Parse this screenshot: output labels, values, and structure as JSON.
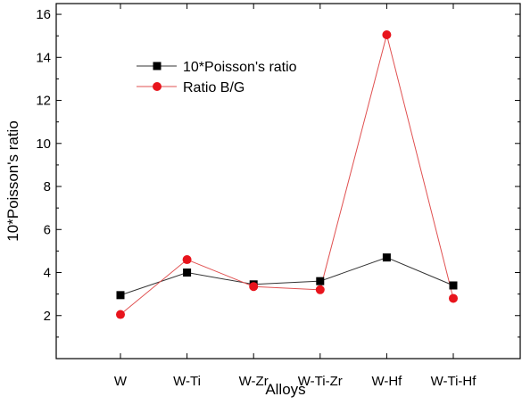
{
  "chart_data": {
    "type": "line",
    "title": "",
    "xlabel": "Alloys",
    "ylabel": "10*Poisson's ratio",
    "categories": [
      "W",
      "W-Ti",
      "W-Zr",
      "W-Ti-Zr",
      "W-Hf",
      "W-Ti-Hf"
    ],
    "ylim": [
      0,
      16.5
    ],
    "yticks": [
      2,
      4,
      6,
      8,
      10,
      12,
      14,
      16
    ],
    "grid": false,
    "legend_position": "top-left",
    "series": [
      {
        "name": "10*Poisson's ratio",
        "values": [
          2.95,
          4.0,
          3.45,
          3.6,
          4.7,
          3.4
        ],
        "marker": "square",
        "color": "#000000",
        "line_color": "#333333"
      },
      {
        "name": "Ratio B/G",
        "values": [
          2.05,
          4.6,
          3.35,
          3.2,
          15.05,
          2.8
        ],
        "marker": "circle",
        "color": "#e8141c",
        "line_color": "#e05050"
      }
    ]
  }
}
